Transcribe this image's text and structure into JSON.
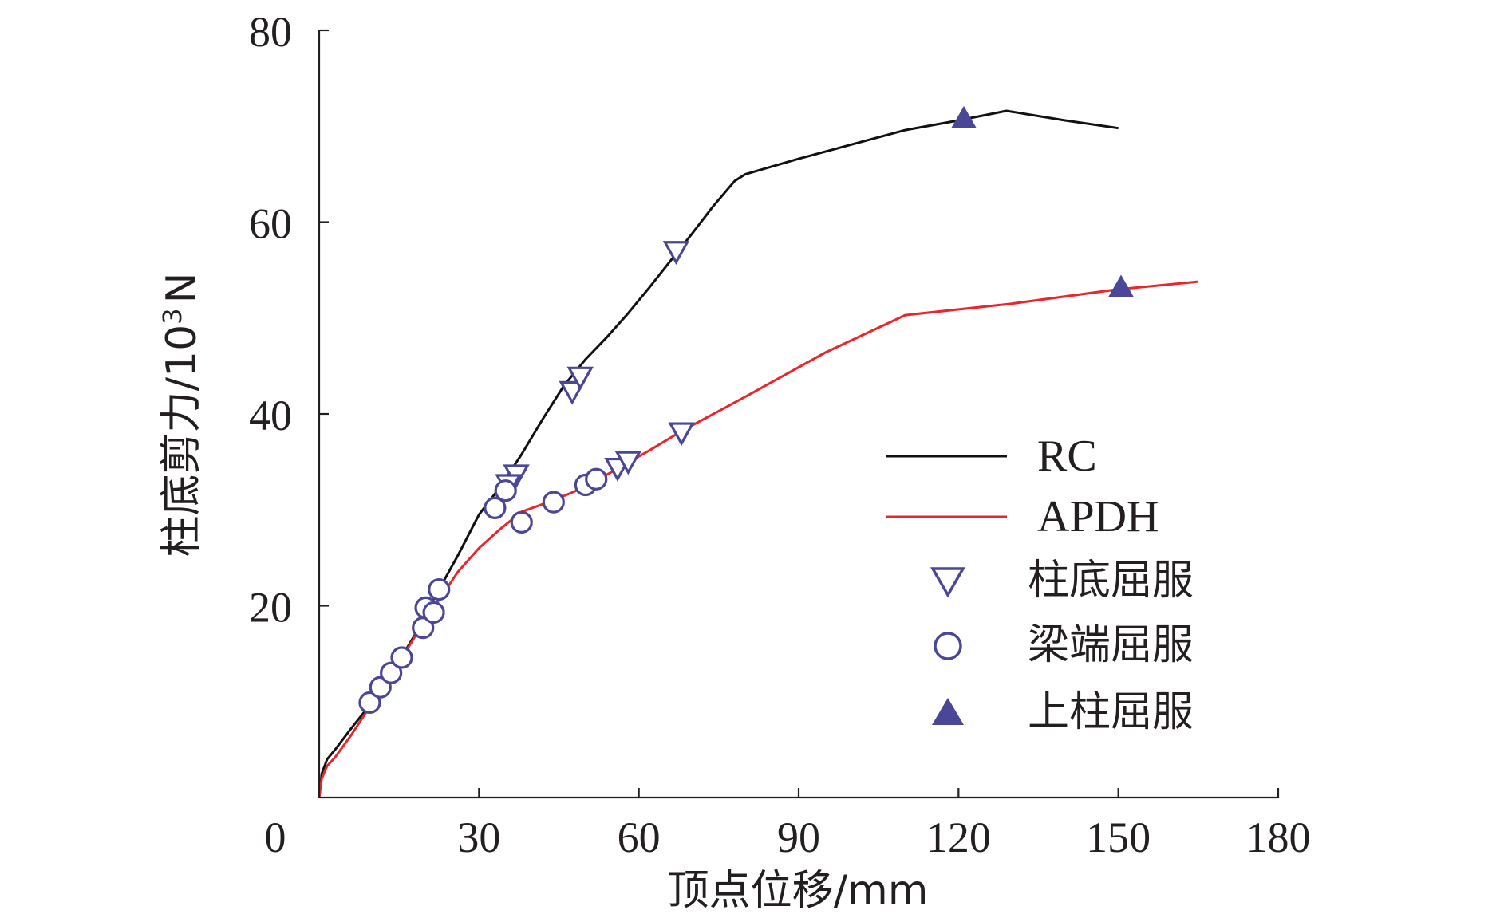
{
  "chart_data": {
    "type": "line",
    "title": "",
    "xlabel": "顶点位移/mm",
    "ylabel_main": "柱底剪力/10",
    "ylabel_sup": "3",
    "ylabel_tail": "N",
    "xlim": [
      0,
      180
    ],
    "ylim": [
      0,
      80
    ],
    "xticks": [
      30,
      60,
      90,
      120,
      150,
      180
    ],
    "yticks": [
      20,
      40,
      60,
      80
    ],
    "origin_label": "0",
    "colors": {
      "axis": "#231f20",
      "rc": "#111111",
      "apdh": "#e8262b",
      "marker": "#4a4796"
    },
    "series": [
      {
        "name": "RC",
        "points": [
          [
            0,
            0
          ],
          [
            0.5,
            2.5
          ],
          [
            1.5,
            4
          ],
          [
            3,
            5
          ],
          [
            6,
            7.2
          ],
          [
            10,
            10
          ],
          [
            14,
            13.3
          ],
          [
            18,
            17
          ],
          [
            22,
            21.2
          ],
          [
            26,
            25.2
          ],
          [
            30,
            29.5
          ],
          [
            34,
            32.4
          ],
          [
            38,
            35.8
          ],
          [
            42,
            39.5
          ],
          [
            46,
            43
          ],
          [
            50,
            45.7
          ],
          [
            54,
            48
          ],
          [
            58,
            50.5
          ],
          [
            62,
            53.2
          ],
          [
            66,
            56
          ],
          [
            70,
            58.8
          ],
          [
            74,
            61.7
          ],
          [
            78,
            64.3
          ],
          [
            80,
            65
          ],
          [
            90,
            66.6
          ],
          [
            100,
            68.1
          ],
          [
            110,
            69.6
          ],
          [
            120,
            70.6
          ],
          [
            129,
            71.6
          ],
          [
            140,
            70.6
          ],
          [
            150,
            69.8
          ]
        ]
      },
      {
        "name": "APDH",
        "points": [
          [
            0,
            0
          ],
          [
            0.5,
            2
          ],
          [
            1.5,
            3.3
          ],
          [
            3,
            4.2
          ],
          [
            6,
            6.5
          ],
          [
            10,
            9.9
          ],
          [
            14,
            13.2
          ],
          [
            18,
            16.8
          ],
          [
            22,
            20.2
          ],
          [
            26,
            23.5
          ],
          [
            30,
            26
          ],
          [
            34,
            28
          ],
          [
            38,
            29.8
          ],
          [
            44,
            31
          ],
          [
            50,
            32.4
          ],
          [
            56,
            34.3
          ],
          [
            62,
            36.2
          ],
          [
            68,
            38.2
          ],
          [
            80,
            41.8
          ],
          [
            95,
            46.4
          ],
          [
            110,
            50.3
          ],
          [
            130,
            51.5
          ],
          [
            150,
            53
          ],
          [
            165,
            53.8
          ]
        ]
      }
    ],
    "markers": [
      {
        "name": "柱底屈服",
        "shape": "triangle-down",
        "points": [
          [
            37,
            33.6
          ],
          [
            35.5,
            32.6
          ],
          [
            47.5,
            42.3
          ],
          [
            49,
            43.8
          ],
          [
            56,
            34.3
          ],
          [
            58,
            35
          ],
          [
            67,
            56.9
          ],
          [
            68,
            38
          ]
        ]
      },
      {
        "name": "梁端屈服",
        "shape": "circle",
        "points": [
          [
            9.5,
            9.9
          ],
          [
            11.5,
            11.5
          ],
          [
            13.5,
            13
          ],
          [
            15.5,
            14.6
          ],
          [
            19.5,
            17.7
          ],
          [
            20,
            19.8
          ],
          [
            21.5,
            19.3
          ],
          [
            22.5,
            21.7
          ],
          [
            33,
            30.2
          ],
          [
            35,
            32
          ],
          [
            38,
            28.7
          ],
          [
            44,
            30.8
          ],
          [
            50,
            32.6
          ],
          [
            52,
            33.2
          ]
        ]
      },
      {
        "name": "上柱屈服",
        "shape": "triangle-up",
        "points": [
          [
            121,
            70.7
          ],
          [
            150.5,
            53.1
          ]
        ]
      }
    ],
    "legend": [
      "RC",
      "APDH",
      "柱底屈服",
      "梁端屈服",
      "上柱屈服"
    ],
    "legend_position": "center-right"
  }
}
